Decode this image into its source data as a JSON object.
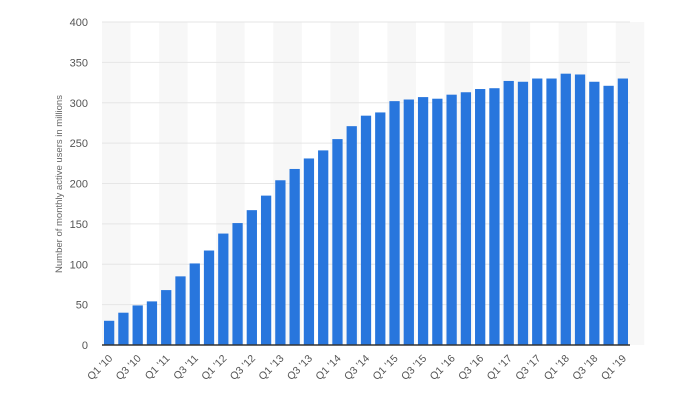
{
  "chart_data": {
    "type": "bar",
    "title": "",
    "xlabel": "",
    "ylabel": "Number of monthly active users in millions",
    "ylim": [
      0,
      400
    ],
    "yticks": [
      0,
      50,
      100,
      150,
      200,
      250,
      300,
      350,
      400
    ],
    "grid": true,
    "bar_color": "#2876dd",
    "categories": [
      "Q1 '10",
      "Q2 '10",
      "Q3 '10",
      "Q4 '10",
      "Q1 '11",
      "Q2 '11",
      "Q3 '11",
      "Q4 '11",
      "Q1 '12",
      "Q2 '12",
      "Q3 '12",
      "Q4 '12",
      "Q1 '13",
      "Q2 '13",
      "Q3 '13",
      "Q4 '13",
      "Q1 '14",
      "Q2 '14",
      "Q3 '14",
      "Q4 '14",
      "Q1 '15",
      "Q2 '15",
      "Q3 '15",
      "Q4 '15",
      "Q1 '16",
      "Q2 '16",
      "Q3 '16",
      "Q4 '16",
      "Q1 '17",
      "Q2 '17",
      "Q3 '17",
      "Q4 '17",
      "Q1 '18",
      "Q2 '18",
      "Q3 '18",
      "Q4 '18",
      "Q1 '19"
    ],
    "tick_labels": [
      "Q1 '10",
      "Q3 '10",
      "Q1 '11",
      "Q3 '11",
      "Q1 '12",
      "Q3 '12",
      "Q1 '13",
      "Q3 '13",
      "Q1 '14",
      "Q3 '14",
      "Q1 '15",
      "Q3 '15",
      "Q1 '16",
      "Q3 '16",
      "Q1 '17",
      "Q3 '17",
      "Q1 '18",
      "Q3 '18",
      "Q1 '19"
    ],
    "values": [
      30,
      40,
      49,
      54,
      68,
      85,
      101,
      117,
      138,
      151,
      167,
      185,
      204,
      218,
      231,
      241,
      255,
      271,
      284,
      288,
      302,
      304,
      307,
      305,
      310,
      313,
      317,
      318,
      327,
      326,
      330,
      330,
      336,
      335,
      326,
      321,
      330
    ]
  }
}
